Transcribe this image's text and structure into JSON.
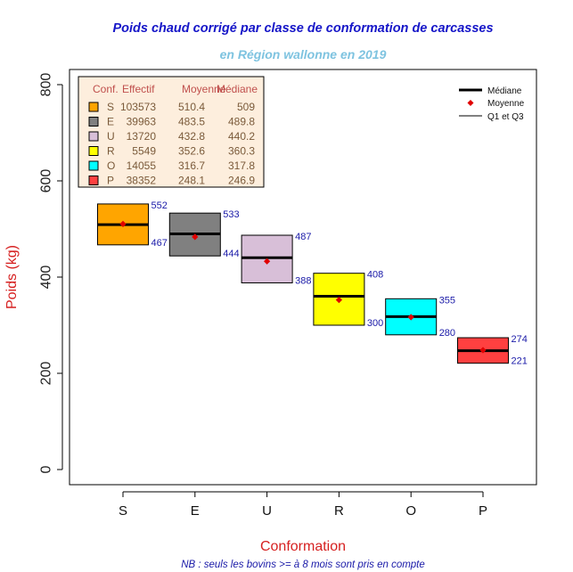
{
  "chart_data": {
    "type": "box",
    "title": "Poids chaud corrigé par classe de conformation de carcasses",
    "subtitle": "en Région wallonne en 2019",
    "xlabel": "Conformation",
    "ylabel": "Poids (kg)",
    "note": "NB : seuls les bovins >= à 8 mois sont pris en compte",
    "ylim": [
      -30,
      830
    ],
    "yticks": [
      0,
      200,
      400,
      600,
      800
    ],
    "categories": [
      "S",
      "E",
      "U",
      "R",
      "O",
      "P"
    ],
    "colors": [
      "#FFA500",
      "#808080",
      "#D8BFD8",
      "#FFFF00",
      "#00FFFF",
      "#FF4040"
    ],
    "q1": [
      467,
      444,
      388,
      300,
      280,
      221
    ],
    "q3": [
      552,
      533,
      487,
      408,
      355,
      274
    ],
    "median": [
      509,
      489.8,
      440.2,
      360.3,
      317.8,
      246.9
    ],
    "mean": [
      510.4,
      483.5,
      432.8,
      352.6,
      316.7,
      248.1
    ],
    "effectif": [
      103573,
      39963,
      13720,
      5549,
      14055,
      38352
    ],
    "table_legend": {
      "headers": [
        "Conf.",
        "Effectif",
        "Moyenne",
        "Médiane"
      ],
      "rows": [
        [
          "S",
          "103573",
          "510.4",
          "509"
        ],
        [
          "E",
          "39963",
          "483.5",
          "489.8"
        ],
        [
          "U",
          "13720",
          "432.8",
          "440.2"
        ],
        [
          "R",
          "5549",
          "352.6",
          "360.3"
        ],
        [
          "O",
          "14055",
          "316.7",
          "317.8"
        ],
        [
          "P",
          "38352",
          "248.1",
          "246.9"
        ]
      ]
    },
    "key_legend": [
      "Médiane",
      "Moyenne",
      "Q1 et Q3"
    ],
    "legend_position": "top-right",
    "grid": false
  }
}
